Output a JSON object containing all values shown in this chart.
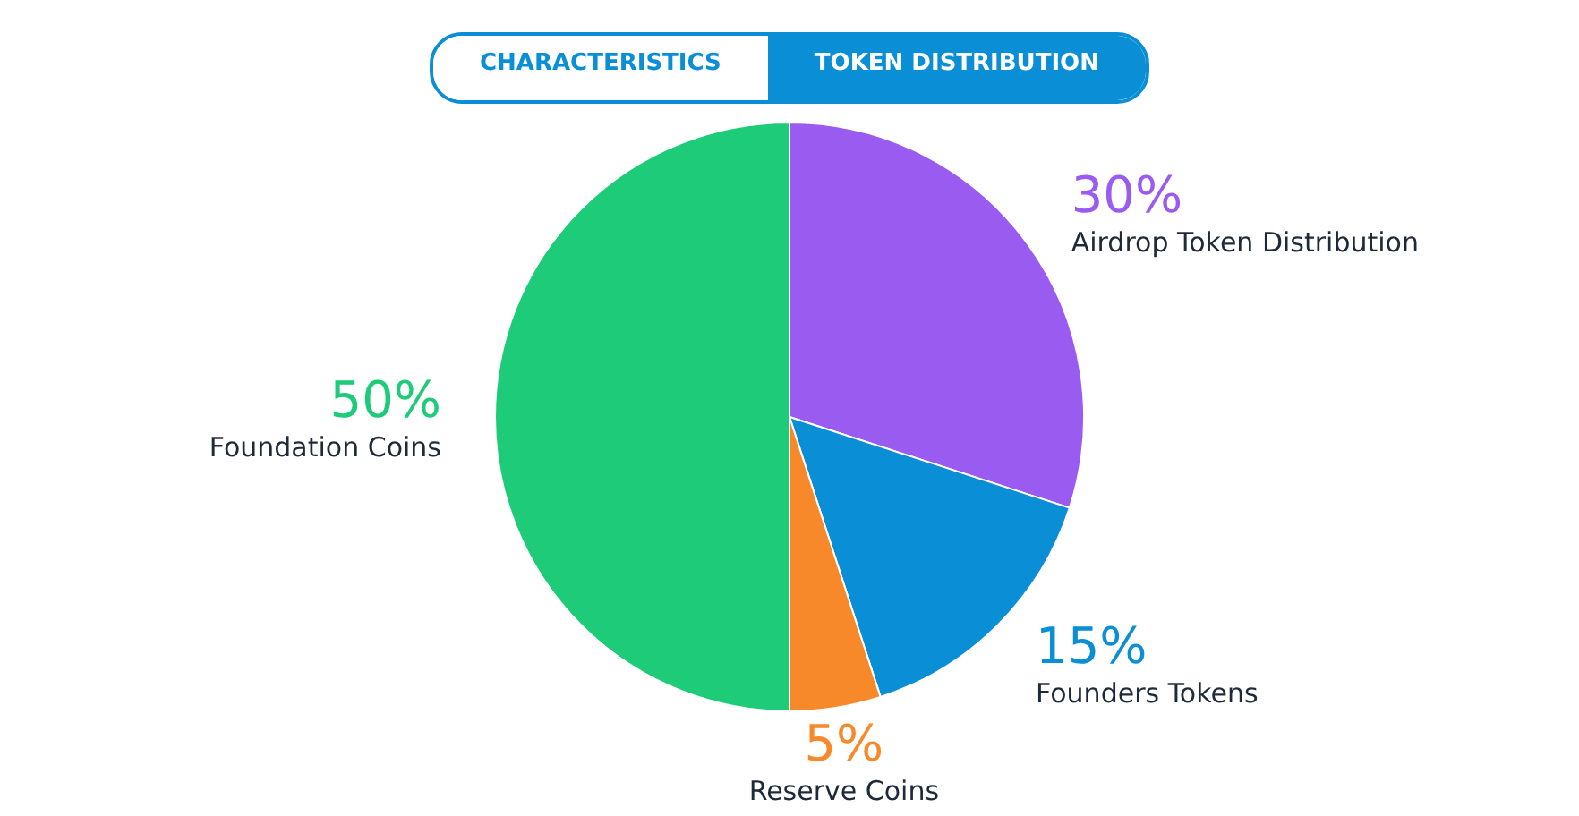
{
  "chart_data": {
    "type": "pie",
    "categories": [
      "Airdrop Token Distribution",
      "Founders Tokens",
      "Reserve Coins",
      "Foundation Coins"
    ],
    "values": [
      30,
      15,
      5,
      50
    ],
    "colors": [
      "#9a5cf0",
      "#0a8fd6",
      "#f7892b",
      "#1ecb78"
    ],
    "value_labels": [
      "30%",
      "15%",
      "5%",
      "50%"
    ],
    "legend": false,
    "annotations": [
      "CHARACTERISTICS",
      "TOKEN DISTRIBUTION"
    ]
  }
}
